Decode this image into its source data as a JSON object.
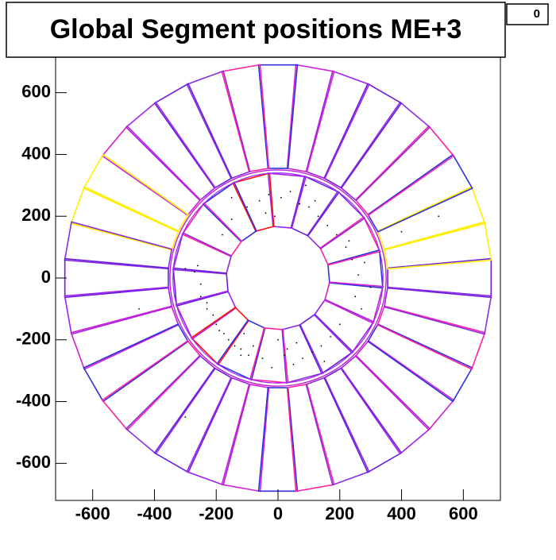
{
  "chart_data": {
    "type": "scatter",
    "title": "Global Segment positions ME+3",
    "stats_box": 0,
    "x": [
      -120,
      -95,
      -160,
      -175,
      -140,
      -210,
      -230,
      -200,
      -250,
      -260,
      -180,
      -150,
      -100,
      -60,
      -30,
      10,
      40,
      70,
      100,
      130,
      160,
      190,
      220,
      240,
      260,
      200,
      170,
      140,
      110,
      80,
      50,
      20,
      -20,
      -50,
      -80,
      -110,
      -190,
      -230,
      -250,
      -270,
      250,
      270,
      280,
      230,
      -300,
      300,
      0,
      -10,
      30,
      60,
      -40,
      150,
      -150,
      120,
      -120,
      400,
      -450,
      520,
      -300,
      90
    ],
    "y": [
      -230,
      -250,
      -200,
      -180,
      -220,
      -120,
      -80,
      -150,
      -20,
      40,
      140,
      190,
      230,
      250,
      270,
      260,
      280,
      240,
      230,
      200,
      170,
      140,
      100,
      60,
      10,
      -150,
      -190,
      -220,
      -240,
      -260,
      -280,
      -250,
      -290,
      -260,
      -220,
      -180,
      -170,
      -100,
      -60,
      20,
      -60,
      -100,
      50,
      120,
      30,
      -30,
      -200,
      200,
      -230,
      -210,
      210,
      -270,
      260,
      250,
      -250,
      150,
      -100,
      200,
      -450,
      300
    ],
    "marker_color": "#000000",
    "xlim": [
      -720,
      720
    ],
    "ylim": [
      -720,
      720
    ],
    "xticks": [
      -600,
      -400,
      -200,
      0,
      200,
      400,
      600
    ],
    "yticks": [
      -600,
      -400,
      -200,
      0,
      200,
      400,
      600
    ]
  }
}
